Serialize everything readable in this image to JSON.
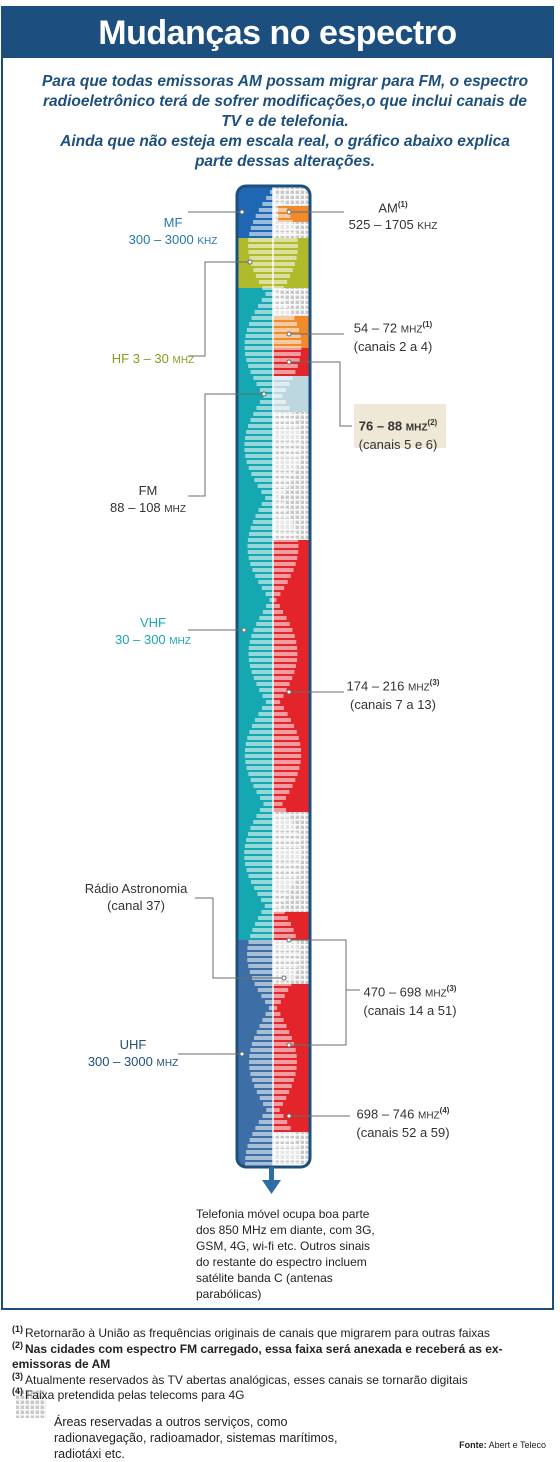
{
  "title": "Mudanças no espectro",
  "intro": [
    "Para que todas emissoras AM possam migrar para FM, o espectro",
    "radioeletrônico terá de sofrer modificações,o que inclui canais de TV e de telefonia.",
    "Ainda que não esteja em escala real, o gráfico abaixo explica",
    "parte dessas alterações."
  ],
  "left_labels": {
    "mf": {
      "name": "MF",
      "range": "300 – 3000",
      "unit": "KHZ"
    },
    "hf": {
      "name": "HF 3 – 30",
      "unit": "MHZ"
    },
    "fm": {
      "name": "FM",
      "range": "88 – 108",
      "unit": "MHZ"
    },
    "vhf": {
      "name": "VHF",
      "range": "30 – 300",
      "unit": "MHZ"
    },
    "radio_astro": {
      "line1": "Rádio Astronomia",
      "line2": "(canal 37)"
    },
    "uhf": {
      "name": "UHF",
      "range": "300 – 3000",
      "unit": "MHZ"
    }
  },
  "right_labels": {
    "am": {
      "name": "AM",
      "note": "(1)",
      "range": "525 – 1705",
      "unit": "KHZ"
    },
    "tv_2_4": {
      "range": "54 – 72",
      "unit": "MHZ",
      "note": "(1)",
      "channels": "(canais 2 a 4)"
    },
    "tv_5_6": {
      "range": "76 – 88",
      "unit": "MHZ",
      "note": "(2)",
      "channels": "(canais 5 e 6)"
    },
    "tv_7_13": {
      "range": "174 – 216",
      "unit": "MHZ",
      "note": "(3)",
      "channels": "(canais 7 a 13)"
    },
    "tv_14_51": {
      "range": "470 – 698",
      "unit": "MHZ",
      "note": "(3)",
      "channels": "(canais 14 a 51)"
    },
    "tv_52_59": {
      "range": "698 – 746",
      "unit": "MHZ",
      "note": "(4)",
      "channels": "(canais 52 a 59)"
    }
  },
  "below_bar": "Telefonia móvel ocupa boa parte dos 850 MHz em diante, com 3G, GSM, 4G, wi-fi etc. Outros sinais do restante do espectro incluem satélite banda C (antenas parabólicas)",
  "notes": [
    {
      "key": "(1)",
      "text": "Retornarão à União as frequências originais  de canais que migrarem para outras faixas",
      "bold": false
    },
    {
      "key": "(2)",
      "text": "Nas cidades com espectro FM carregado, essa faixa  será anexada e receberá as ex-emissoras de AM",
      "bold": true
    },
    {
      "key": "(3)",
      "text": "Atualmente reservados às TV abertas analógicas, esses canais se tornarão digitais",
      "bold": false
    },
    {
      "key": "(4)",
      "text": "Faixa pretendida pelas telecoms para 4G",
      "bold": false
    }
  ],
  "legend": "Áreas reservadas a outros serviços, como radionavegação, radioamador, sistemas marítimos, radiotáxi etc.",
  "source": {
    "label": "Fonte:",
    "text": "Abert e Teleco"
  },
  "colors": {
    "frame": "#1d4f7e",
    "mf": "#1f67b2",
    "hf": "#b0bb2c",
    "vhf": "#16a8b1",
    "uhf": "#3d6fa6",
    "tv": "#e3242b",
    "am": "#ef8a2d",
    "tv_5_6": "#bcd7df",
    "reserved": "#c9c9c9"
  }
}
